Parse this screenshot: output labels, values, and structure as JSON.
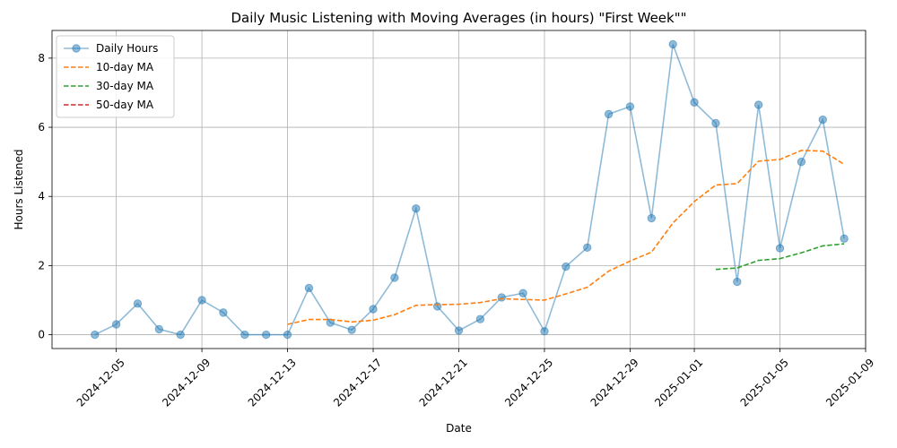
{
  "chart_data": {
    "type": "line",
    "title": "Daily Music Listening with Moving Averages (in hours) \"First Week\"\"",
    "xlabel": "Date",
    "ylabel": "Hours Listened",
    "x_start": "2024-12-04",
    "x_ticks": [
      "2024-12-05",
      "2024-12-09",
      "2024-12-13",
      "2024-12-17",
      "2024-12-21",
      "2024-12-25",
      "2024-12-29",
      "2025-01-01",
      "2025-01-05",
      "2025-01-09"
    ],
    "y_ticks": [
      0,
      2,
      4,
      6,
      8
    ],
    "xlim": [
      "2024-12-02",
      "2025-01-09"
    ],
    "ylim": [
      -0.4,
      8.8
    ],
    "grid": true,
    "legend_position": "top-left",
    "series": [
      {
        "name": "Daily Hours",
        "color": "#1f77b4",
        "style": "solid-marker",
        "values": [
          0.0,
          0.3,
          0.9,
          0.16,
          0.0,
          1.0,
          0.64,
          0.0,
          0.0,
          0.0,
          1.35,
          0.35,
          0.14,
          0.74,
          1.65,
          3.65,
          0.82,
          0.12,
          0.45,
          1.08,
          1.2,
          0.1,
          1.97,
          2.52,
          6.38,
          6.6,
          3.37,
          8.4,
          6.72,
          6.12,
          1.53,
          6.65,
          2.5,
          5.0,
          6.22,
          2.78
        ]
      },
      {
        "name": "10-day MA",
        "color": "#ff7f0e",
        "style": "dashed",
        "start_index": 9,
        "values": [
          0.3,
          0.44,
          0.44,
          0.37,
          0.42,
          0.58,
          0.85,
          0.87,
          0.88,
          0.93,
          1.04,
          1.02,
          1.0,
          1.18,
          1.37,
          1.84,
          2.13,
          2.39,
          3.23,
          3.85,
          4.33,
          4.37,
          5.02,
          5.07,
          5.33,
          5.31,
          4.93
        ]
      },
      {
        "name": "30-day MA",
        "color": "#2ca02c",
        "style": "dashed",
        "start_index": 29,
        "values": [
          1.89,
          1.93,
          2.15,
          2.2,
          2.37,
          2.57,
          2.63
        ]
      },
      {
        "name": "50-day MA",
        "color": "#d62728",
        "style": "dashed",
        "start_index": 50,
        "values": []
      }
    ]
  }
}
